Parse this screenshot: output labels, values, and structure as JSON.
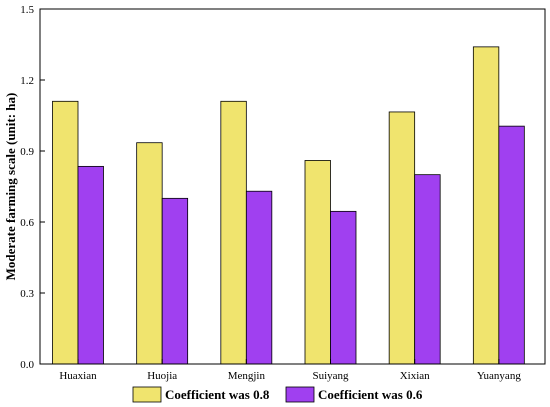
{
  "chart_data": {
    "type": "bar",
    "title": "",
    "xlabel": "",
    "ylabel": "Moderate farming scale (unit: ha)",
    "ylim": [
      0,
      1.5
    ],
    "yticks": [
      "0.0",
      "0.3",
      "0.6",
      "0.9",
      "1.2",
      "1.5"
    ],
    "categories": [
      "Huaxian",
      "Huojia",
      "Mengjin",
      "Suiyang",
      "Xixian",
      "Yuanyang"
    ],
    "series": [
      {
        "name": "Coefficient was 0.8",
        "color": "#f0e46e",
        "values": [
          1.11,
          0.935,
          1.11,
          0.86,
          1.065,
          1.34
        ]
      },
      {
        "name": "Coefficient was 0.6",
        "color": "#a040f0",
        "values": [
          0.835,
          0.7,
          0.73,
          0.645,
          0.8,
          1.005
        ]
      }
    ],
    "grid": false,
    "legend_position": "bottom"
  }
}
